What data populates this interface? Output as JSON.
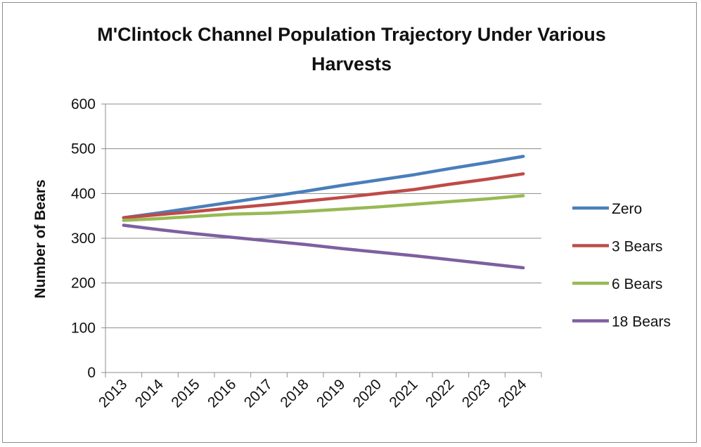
{
  "chart_data": {
    "type": "line",
    "title_line1": "M'Clintock Channel  Population Trajectory Under Various",
    "title_line2": "Harvests",
    "xlabel": "",
    "ylabel": "Number of Bears",
    "ylim": [
      0,
      600
    ],
    "yticks": [
      "0",
      "100",
      "200",
      "300",
      "400",
      "500",
      "600"
    ],
    "categories": [
      "2013",
      "2014",
      "2015",
      "2016",
      "2017",
      "2018",
      "2019",
      "2020",
      "2021",
      "2022",
      "2023",
      "2024"
    ],
    "grid": true,
    "legend_position": "right",
    "series": [
      {
        "name": "Zero",
        "color": "#4a7ebb",
        "values": [
          346,
          357,
          369,
          381,
          393,
          405,
          418,
          430,
          442,
          456,
          469,
          483
        ]
      },
      {
        "name": "3 Bears",
        "color": "#be4b48",
        "values": [
          346,
          353,
          360,
          368,
          375,
          383,
          391,
          400,
          409,
          421,
          432,
          444
        ]
      },
      {
        "name": "6 Bears",
        "color": "#98b954",
        "values": [
          340,
          344,
          349,
          354,
          356,
          360,
          365,
          370,
          376,
          382,
          388,
          395
        ]
      },
      {
        "name": "18 Bears",
        "color": "#7d60a0",
        "values": [
          329,
          319,
          310,
          302,
          294,
          286,
          277,
          269,
          261,
          252,
          243,
          234
        ]
      }
    ]
  }
}
